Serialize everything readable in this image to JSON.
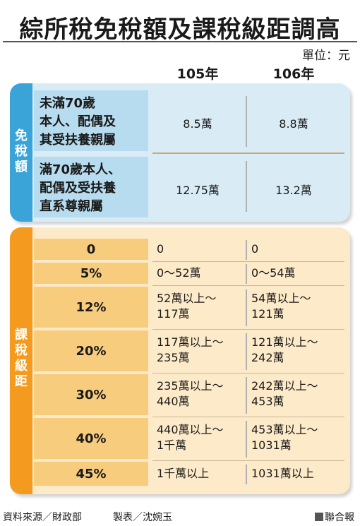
{
  "title": "綜所稅免稅額及課稅級距調高",
  "unit": "單位：元",
  "columns": [
    "105年",
    "106年"
  ],
  "exemption": {
    "section_label": "免稅額",
    "rows": [
      {
        "label": "未滿70歲\n本人、配偶及\n其受扶養親屬",
        "y105": "8.5萬",
        "y106": "8.8萬"
      },
      {
        "label": "滿70歲本人、\n配偶及受扶養\n直系尊親屬",
        "y105": "12.75萬",
        "y106": "13.2萬"
      }
    ]
  },
  "brackets": {
    "section_label": "課稅級距",
    "rows": [
      {
        "rate": "0",
        "y105": "0",
        "y106": "0"
      },
      {
        "rate": "5%",
        "y105": "0～52萬",
        "y106": "0～54萬"
      },
      {
        "rate": "12%",
        "y105": "52萬以上～\n117萬",
        "y106": "54萬以上～\n121萬"
      },
      {
        "rate": "20%",
        "y105": "117萬以上～\n235萬",
        "y106": "121萬以上～\n242萬"
      },
      {
        "rate": "30%",
        "y105": "235萬以上～\n440萬",
        "y106": "242萬以上～\n453萬"
      },
      {
        "rate": "40%",
        "y105": "440萬以上～\n1千萬",
        "y106": "453萬以上～\n1031萬"
      },
      {
        "rate": "45%",
        "y105": "1千萬以上",
        "y106": "1031萬以上"
      }
    ]
  },
  "footer": {
    "source": "資料來源／財政部",
    "maker": "製表／沈婉玉",
    "publisher": "聯合報"
  },
  "colors": {
    "blue_side": "#3aa3d8",
    "blue_panel": "#d9ecf6",
    "orange_side": "#f39a1f",
    "orange_panel": "#fdeac9",
    "orange_rate": "#f8cc7d"
  }
}
